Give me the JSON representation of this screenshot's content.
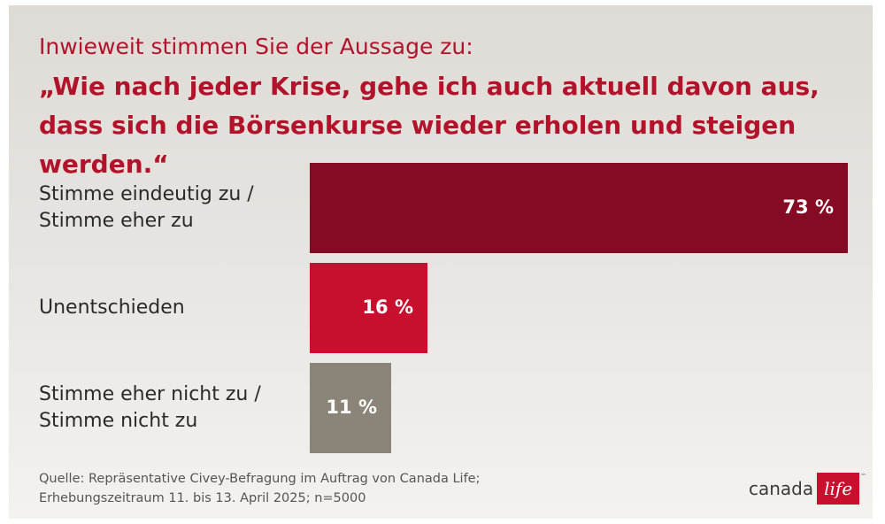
{
  "header": {
    "subtitle": "Inwieweit stimmen Sie der Aussage zu:",
    "title": "„Wie nach jeder Krise, gehe ich auch aktuell davon aus, dass sich die Börsenkurse wieder erholen und steigen werden.“"
  },
  "chart_data": {
    "type": "bar",
    "orientation": "horizontal",
    "title": "„Wie nach jeder Krise, gehe ich auch aktuell davon aus, dass sich die Börsenkurse wieder erholen und steigen werden.“",
    "subtitle": "Inwieweit stimmen Sie der Aussage zu:",
    "categories": [
      "Stimme eindeutig zu /\nStimme eher zu",
      "Unentschieden",
      "Stimme eher nicht zu /\nStimme nicht zu"
    ],
    "values": [
      73,
      16,
      11
    ],
    "value_labels": [
      "73 %",
      "16 %",
      "11 %"
    ],
    "colors": [
      "#850a24",
      "#c8102e",
      "#8b8579"
    ],
    "unit": "%",
    "xlim": [
      0,
      73
    ],
    "grid": false,
    "legend": "none"
  },
  "footer": {
    "source": "Quelle: Repräsentative Civey-Befragung im Auftrag von Canada Life;\nErhebungszeitraum 11. bis 13. April 2025; n=5000"
  },
  "logo": {
    "word": "canada",
    "box_word": "life",
    "tm": "™",
    "color": "#c8102e"
  }
}
